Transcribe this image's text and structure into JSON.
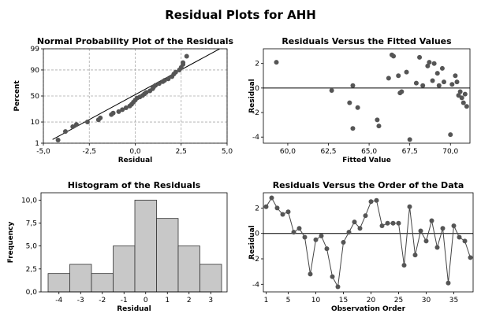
{
  "figure": {
    "title": "Residual Plots for AHH"
  },
  "chart_data": [
    {
      "type": "scatter",
      "title": "Normal Probability Plot of the Residuals",
      "xlabel": "Residual",
      "ylabel": "Percent",
      "xlim": [
        -5,
        5
      ],
      "ylim": [
        1,
        99
      ],
      "y_scale": "normal-probability",
      "grid": true,
      "x_ticks": [
        "-5,0",
        "-2,5",
        "0,0",
        "2,5",
        "5,0"
      ],
      "y_ticks": [
        {
          "label": "1",
          "value": 1
        },
        {
          "label": "10",
          "value": 10
        },
        {
          "label": "50",
          "value": 50
        },
        {
          "label": "90",
          "value": 90
        },
        {
          "label": "99",
          "value": 99
        }
      ],
      "fit_line": {
        "x": [
          -4.5,
          4.6
        ],
        "y": [
          1.6,
          99.0
        ]
      },
      "points": [
        {
          "x": -4.2,
          "y": 1.5
        },
        {
          "x": -3.8,
          "y": 4
        },
        {
          "x": -3.4,
          "y": 6.5
        },
        {
          "x": -3.2,
          "y": 8
        },
        {
          "x": -2.6,
          "y": 10
        },
        {
          "x": -2.0,
          "y": 12
        },
        {
          "x": -1.9,
          "y": 14
        },
        {
          "x": -1.3,
          "y": 18
        },
        {
          "x": -1.2,
          "y": 20
        },
        {
          "x": -0.9,
          "y": 22
        },
        {
          "x": -0.7,
          "y": 25
        },
        {
          "x": -0.5,
          "y": 28
        },
        {
          "x": -0.3,
          "y": 31
        },
        {
          "x": -0.2,
          "y": 34
        },
        {
          "x": -0.1,
          "y": 38
        },
        {
          "x": 0.0,
          "y": 42
        },
        {
          "x": 0.1,
          "y": 46
        },
        {
          "x": 0.25,
          "y": 48
        },
        {
          "x": 0.4,
          "y": 51
        },
        {
          "x": 0.5,
          "y": 54
        },
        {
          "x": 0.6,
          "y": 57
        },
        {
          "x": 0.8,
          "y": 60
        },
        {
          "x": 0.95,
          "y": 64
        },
        {
          "x": 1.0,
          "y": 67
        },
        {
          "x": 1.1,
          "y": 70
        },
        {
          "x": 1.3,
          "y": 73
        },
        {
          "x": 1.5,
          "y": 76
        },
        {
          "x": 1.6,
          "y": 78
        },
        {
          "x": 1.8,
          "y": 80
        },
        {
          "x": 2.0,
          "y": 83
        },
        {
          "x": 2.1,
          "y": 86
        },
        {
          "x": 2.2,
          "y": 88
        },
        {
          "x": 2.4,
          "y": 90
        },
        {
          "x": 2.5,
          "y": 92
        },
        {
          "x": 2.6,
          "y": 94
        },
        {
          "x": 2.6,
          "y": 95
        },
        {
          "x": 2.8,
          "y": 97.5
        }
      ]
    },
    {
      "type": "scatter",
      "title": "Residuals Versus the Fitted Values",
      "xlabel": "Fitted Value",
      "ylabel": "Residual",
      "xlim": [
        58.5,
        71.2
      ],
      "ylim": [
        -4.5,
        3.2
      ],
      "x_ticks": [
        60.0,
        62.5,
        65.0,
        67.5,
        70.0
      ],
      "x_tick_labels": [
        "60,0",
        "62,5",
        "65,0",
        "67,5",
        "70,0"
      ],
      "y_ticks": [
        -4,
        -2,
        0,
        2
      ],
      "reference_line_y": 0,
      "points": [
        {
          "x": 59.3,
          "y": 2.1
        },
        {
          "x": 62.7,
          "y": -0.2
        },
        {
          "x": 63.8,
          "y": -1.2
        },
        {
          "x": 64.0,
          "y": 0.2
        },
        {
          "x": 64.0,
          "y": -3.3
        },
        {
          "x": 64.3,
          "y": -1.6
        },
        {
          "x": 65.5,
          "y": -2.6
        },
        {
          "x": 65.6,
          "y": -3.1
        },
        {
          "x": 66.2,
          "y": 0.8
        },
        {
          "x": 66.4,
          "y": 2.7
        },
        {
          "x": 66.5,
          "y": 2.6
        },
        {
          "x": 66.8,
          "y": 1.0
        },
        {
          "x": 66.9,
          "y": -0.4
        },
        {
          "x": 67.0,
          "y": -0.3
        },
        {
          "x": 67.3,
          "y": 1.3
        },
        {
          "x": 67.5,
          "y": -4.2
        },
        {
          "x": 67.9,
          "y": 0.4
        },
        {
          "x": 68.1,
          "y": 2.5
        },
        {
          "x": 68.3,
          "y": 0.2
        },
        {
          "x": 68.6,
          "y": 1.8
        },
        {
          "x": 68.7,
          "y": 2.1
        },
        {
          "x": 68.9,
          "y": 0.6
        },
        {
          "x": 69.0,
          "y": 2.0
        },
        {
          "x": 69.2,
          "y": 1.2
        },
        {
          "x": 69.3,
          "y": 0.2
        },
        {
          "x": 69.5,
          "y": 1.6
        },
        {
          "x": 69.6,
          "y": 0.5
        },
        {
          "x": 70.0,
          "y": -3.8
        },
        {
          "x": 70.1,
          "y": 0.3
        },
        {
          "x": 70.3,
          "y": 1.0
        },
        {
          "x": 70.4,
          "y": 0.5
        },
        {
          "x": 70.5,
          "y": -0.6
        },
        {
          "x": 70.6,
          "y": -0.3
        },
        {
          "x": 70.7,
          "y": -0.8
        },
        {
          "x": 70.8,
          "y": -1.2
        },
        {
          "x": 70.9,
          "y": -0.5
        },
        {
          "x": 71.0,
          "y": -1.5
        }
      ]
    },
    {
      "type": "bar",
      "title": "Histogram of the Residuals",
      "xlabel": "Residual",
      "ylabel": "Frequency",
      "categories": [
        "-4",
        "-3",
        "-2",
        "-1",
        "0",
        "1",
        "2",
        "3"
      ],
      "values": [
        2,
        3,
        2,
        5,
        10,
        8,
        5,
        3
      ],
      "ylim": [
        0,
        10.8
      ],
      "y_ticks": [
        0,
        2.5,
        5,
        7.5,
        10
      ],
      "y_tick_labels": [
        "0,0",
        "2,5",
        "5,0",
        "7,5",
        "10,0"
      ]
    },
    {
      "type": "line",
      "title": "Residuals Versus the Order of the Data",
      "xlabel": "Observation Order",
      "ylabel": "Residual",
      "xlim": [
        0.5,
        38.5
      ],
      "ylim": [
        -4.6,
        3.2
      ],
      "x_ticks": [
        1,
        5,
        10,
        15,
        20,
        25,
        30,
        35
      ],
      "y_ticks": [
        -4,
        -2,
        0,
        2
      ],
      "reference_line_y": 0,
      "x": [
        1,
        2,
        3,
        4,
        5,
        6,
        7,
        8,
        9,
        10,
        11,
        12,
        13,
        14,
        15,
        16,
        17,
        18,
        19,
        20,
        21,
        22,
        23,
        24,
        25,
        26,
        27,
        28,
        29,
        30,
        31,
        32,
        33,
        34,
        35,
        36,
        37,
        38
      ],
      "values": [
        2.1,
        2.8,
        2.0,
        1.5,
        1.7,
        0.1,
        0.4,
        -0.3,
        -3.2,
        -0.5,
        -0.2,
        -1.2,
        -3.4,
        -4.2,
        -0.7,
        0.1,
        0.9,
        0.4,
        1.4,
        2.5,
        2.6,
        0.6,
        0.8,
        0.8,
        0.8,
        -2.5,
        2.1,
        -1.7,
        0.2,
        -0.6,
        1.0,
        -1.1,
        0.4,
        -3.9,
        0.6,
        -0.3,
        -0.6,
        -1.9
      ]
    }
  ]
}
